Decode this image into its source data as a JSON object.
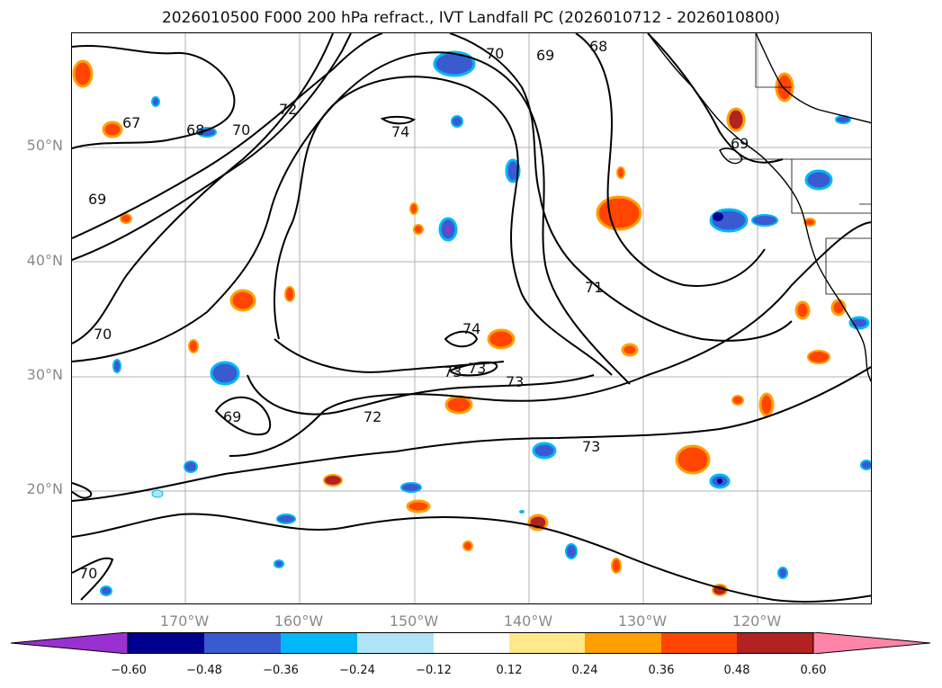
{
  "title": "2026010500 F000 200 hPa refract., IVT Landfall PC (2026010712 - 2026010800)",
  "lat_labels": [
    "50°N",
    "40°N",
    "30°N",
    "20°N"
  ],
  "lon_labels": [
    "170°W",
    "160°W",
    "150°W",
    "140°W",
    "130°W",
    "120°W"
  ],
  "contour_labels": [
    "70",
    "69",
    "68",
    "67",
    "68",
    "70",
    "72",
    "74",
    "69",
    "69",
    "70",
    "71",
    "74",
    "73",
    "73",
    "73",
    "72",
    "69",
    "73",
    "70"
  ],
  "colorbar": {
    "ticks": [
      "−0.60",
      "−0.48",
      "−0.36",
      "−0.24",
      "−0.12",
      "0.12",
      "0.24",
      "0.36",
      "0.48",
      "0.60"
    ],
    "colors": {
      "under": "#9b30d0",
      "neg_060": "#000090",
      "neg_048": "#3a5bd0",
      "neg_036": "#00b8f8",
      "neg_024": "#b0e4f8",
      "neutral": "#ffffff",
      "pos_012": "#ffe88a",
      "pos_024": "#ffa000",
      "pos_036": "#ff4500",
      "pos_048": "#b22222",
      "over": "#ff85a8"
    }
  }
}
